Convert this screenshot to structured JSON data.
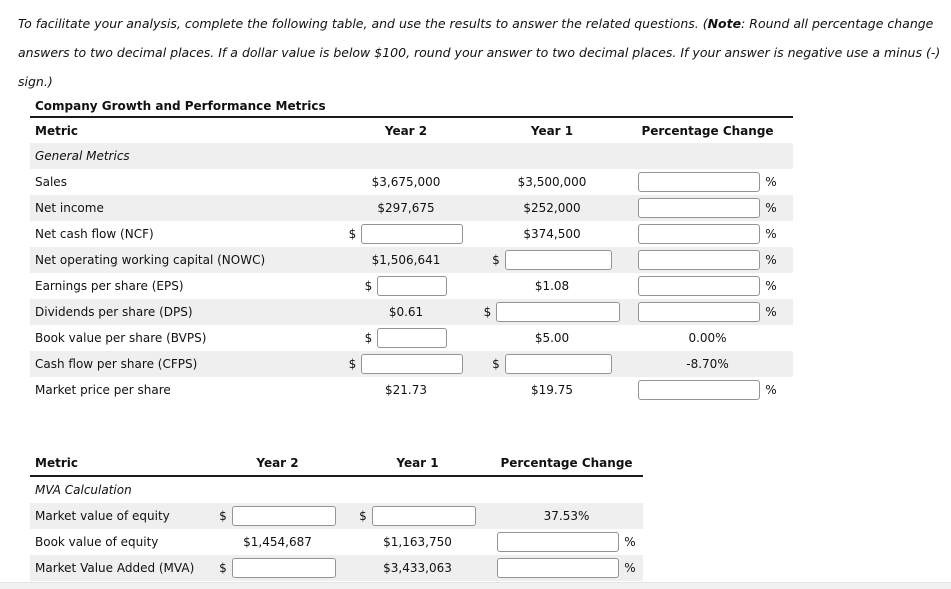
{
  "note": {
    "line1_pre": "To facilitate your analysis, complete the following table, and use the results to answer the related questions. (",
    "note_word": "Note",
    "line1_post": ": Round all percentage change",
    "line2": "answers to two decimal places. If a dollar value is below $100, round your answer to two decimal places. If your answer is negative use a minus (-)",
    "line3": "sign.)"
  },
  "symbols": {
    "dollar": "$",
    "percent": "%"
  },
  "colors": {
    "row_stripe": "#efefef",
    "rule": "#1a1a1a",
    "input_border": "#949494"
  },
  "table1": {
    "title": "Company Growth and Performance Metrics",
    "headers": {
      "metric": "Metric",
      "year2": "Year 2",
      "year1": "Year 1",
      "pct": "Percentage Change"
    },
    "section_label": "General Metrics",
    "rows": [
      {
        "label": "Sales",
        "year2": "$3,675,000",
        "year1": "$3,500,000"
      },
      {
        "label": "Net income",
        "year2": "$297,675",
        "year1": "$252,000"
      },
      {
        "label": "Net cash flow (NCF)",
        "year1": "$374,500"
      },
      {
        "label": "Net operating working capital (NOWC)",
        "year2": "$1,506,641"
      },
      {
        "label": "Earnings per share (EPS)",
        "year1": "$1.08"
      },
      {
        "label": "Dividends per share (DPS)",
        "year2": "$0.61"
      },
      {
        "label": "Book value per share (BVPS)",
        "year1": "$5.00",
        "pct": "0.00%"
      },
      {
        "label": "Cash flow per share (CFPS)",
        "pct": "-8.70%"
      },
      {
        "label": "Market price per share",
        "year2": "$21.73",
        "year1": "$19.75"
      }
    ]
  },
  "table2": {
    "headers": {
      "metric": "Metric",
      "year2": "Year 2",
      "year1": "Year 1",
      "pct": "Percentage Change"
    },
    "section_label": "MVA Calculation",
    "rows": [
      {
        "label": "Market value of equity",
        "pct": "37.53%"
      },
      {
        "label": "Book value of equity",
        "year2": "$1,454,687",
        "year1": "$1,163,750"
      },
      {
        "label": "Market Value Added (MVA)",
        "year1": "$3,433,063"
      }
    ]
  }
}
